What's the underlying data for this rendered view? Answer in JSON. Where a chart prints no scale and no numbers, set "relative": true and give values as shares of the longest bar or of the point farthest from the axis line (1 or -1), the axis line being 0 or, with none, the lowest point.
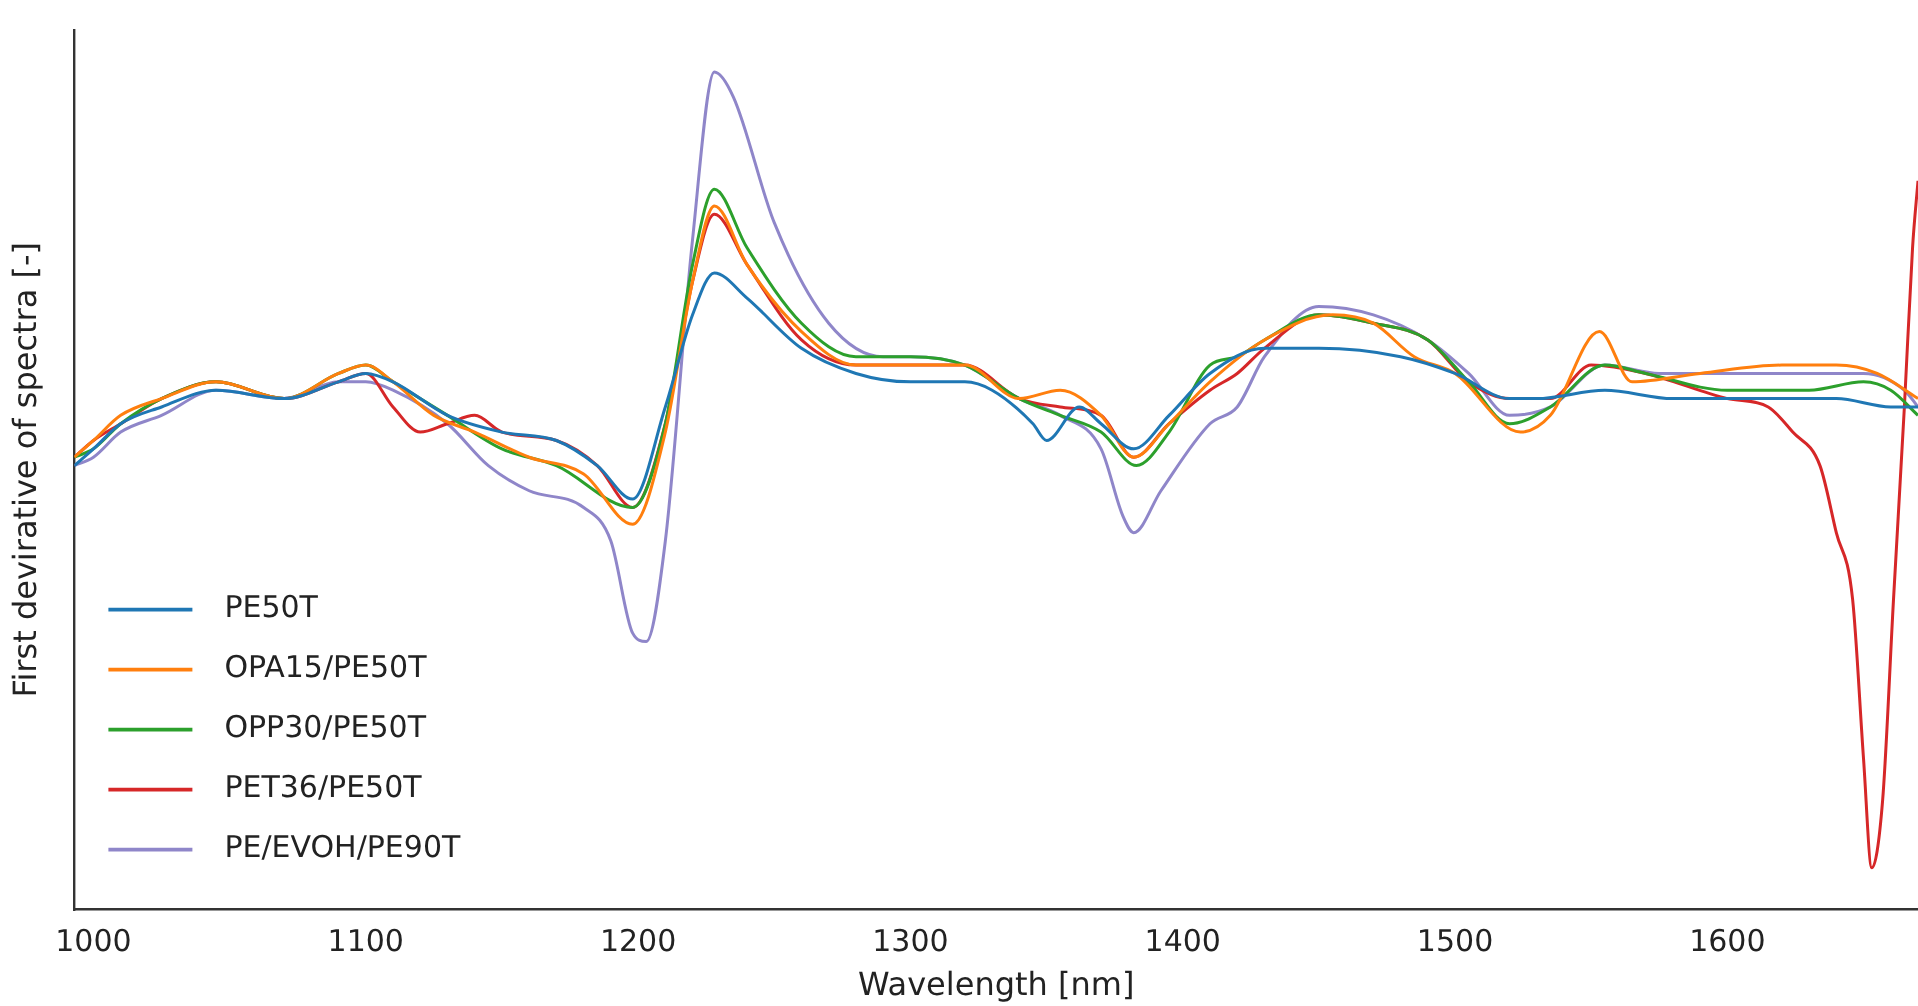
{
  "chart_data": {
    "type": "line",
    "xlabel": "Wavelength [nm]",
    "ylabel": "First devirative of spectra [-]",
    "relative": true,
    "xlim": [
      993,
      1670
    ],
    "xticks": [
      1000,
      1100,
      1200,
      1300,
      1400,
      1500,
      1600
    ],
    "tick_labels": "x",
    "legend": "bottom left",
    "marker": "none",
    "grid": false,
    "series": [
      {
        "name": "PE50T",
        "color": "#1f77b4",
        "x": [
          993,
          1000,
          1010,
          1025,
          1045,
          1070,
          1090,
          1100,
          1110,
          1130,
          1150,
          1170,
          1185,
          1198,
          1210,
          1220,
          1228,
          1240,
          1260,
          1280,
          1300,
          1320,
          1330,
          1345,
          1350,
          1362,
          1370,
          1382,
          1395,
          1410,
          1430,
          1450,
          1480,
          1500,
          1520,
          1530,
          1555,
          1580,
          1610,
          1640,
          1660,
          1670
        ],
        "values": [
          0.53,
          0.55,
          0.58,
          0.6,
          0.62,
          0.61,
          0.63,
          0.64,
          0.63,
          0.59,
          0.57,
          0.56,
          0.53,
          0.49,
          0.6,
          0.71,
          0.76,
          0.73,
          0.67,
          0.64,
          0.63,
          0.63,
          0.62,
          0.58,
          0.56,
          0.6,
          0.58,
          0.55,
          0.59,
          0.64,
          0.67,
          0.67,
          0.66,
          0.64,
          0.61,
          0.61,
          0.62,
          0.61,
          0.61,
          0.61,
          0.6,
          0.6
        ]
      },
      {
        "name": "OPA15/PE50T",
        "color": "#ff7f0e",
        "x": [
          993,
          1000,
          1010,
          1025,
          1045,
          1070,
          1090,
          1100,
          1110,
          1125,
          1140,
          1160,
          1180,
          1198,
          1210,
          1220,
          1228,
          1240,
          1260,
          1280,
          1300,
          1320,
          1340,
          1355,
          1370,
          1382,
          1395,
          1410,
          1430,
          1455,
          1470,
          1485,
          1500,
          1524,
          1535,
          1553,
          1565,
          1590,
          1620,
          1640,
          1655,
          1670
        ],
        "values": [
          0.54,
          0.56,
          0.59,
          0.61,
          0.63,
          0.61,
          0.64,
          0.65,
          0.63,
          0.59,
          0.57,
          0.54,
          0.52,
          0.46,
          0.57,
          0.75,
          0.84,
          0.77,
          0.69,
          0.65,
          0.65,
          0.65,
          0.61,
          0.62,
          0.59,
          0.54,
          0.58,
          0.63,
          0.68,
          0.71,
          0.7,
          0.66,
          0.64,
          0.57,
          0.59,
          0.69,
          0.63,
          0.64,
          0.65,
          0.65,
          0.64,
          0.61
        ]
      },
      {
        "name": "OPP30/PE50T",
        "color": "#2ca02c",
        "x": [
          993,
          1000,
          1010,
          1025,
          1045,
          1070,
          1090,
          1100,
          1110,
          1130,
          1150,
          1170,
          1198,
          1210,
          1220,
          1228,
          1240,
          1260,
          1280,
          1300,
          1320,
          1340,
          1355,
          1370,
          1383,
          1395,
          1410,
          1420,
          1430,
          1450,
          1470,
          1490,
          1505,
          1520,
          1535,
          1555,
          1570,
          1600,
          1630,
          1650,
          1660,
          1670
        ],
        "values": [
          0.54,
          0.55,
          0.58,
          0.61,
          0.63,
          0.61,
          0.64,
          0.65,
          0.63,
          0.59,
          0.55,
          0.53,
          0.48,
          0.58,
          0.77,
          0.86,
          0.79,
          0.7,
          0.66,
          0.66,
          0.65,
          0.61,
          0.59,
          0.57,
          0.53,
          0.57,
          0.65,
          0.66,
          0.68,
          0.71,
          0.7,
          0.68,
          0.63,
          0.58,
          0.6,
          0.65,
          0.64,
          0.62,
          0.62,
          0.63,
          0.62,
          0.59
        ]
      },
      {
        "name": "PET36/PE50T",
        "color": "#d62728",
        "x": [
          993,
          1000,
          1010,
          1025,
          1045,
          1070,
          1090,
          1100,
          1110,
          1120,
          1130,
          1140,
          1150,
          1170,
          1185,
          1198,
          1210,
          1220,
          1228,
          1240,
          1260,
          1280,
          1300,
          1320,
          1340,
          1355,
          1370,
          1382,
          1395,
          1410,
          1420,
          1430,
          1450,
          1470,
          1490,
          1505,
          1520,
          1535,
          1550,
          1570,
          1600,
          1615,
          1624,
          1634,
          1640,
          1646,
          1650,
          1653,
          1657,
          1661,
          1665,
          1668,
          1670
        ],
        "values": [
          0.54,
          0.56,
          0.58,
          0.61,
          0.63,
          0.61,
          0.63,
          0.64,
          0.6,
          0.57,
          0.58,
          0.59,
          0.57,
          0.56,
          0.53,
          0.48,
          0.58,
          0.75,
          0.83,
          0.77,
          0.68,
          0.65,
          0.65,
          0.65,
          0.61,
          0.6,
          0.59,
          0.54,
          0.58,
          0.62,
          0.64,
          0.67,
          0.71,
          0.7,
          0.68,
          0.63,
          0.61,
          0.61,
          0.65,
          0.64,
          0.61,
          0.6,
          0.57,
          0.53,
          0.45,
          0.37,
          0.18,
          0.05,
          0.13,
          0.37,
          0.6,
          0.79,
          0.87
        ]
      },
      {
        "name": "PE/EVOH/PE90T",
        "color": "#8f86c9",
        "x": [
          993,
          1000,
          1010,
          1025,
          1045,
          1070,
          1090,
          1100,
          1110,
          1130,
          1145,
          1160,
          1180,
          1190,
          1198,
          1203,
          1210,
          1220,
          1228,
          1235,
          1250,
          1270,
          1290,
          1300,
          1320,
          1340,
          1355,
          1370,
          1378,
          1382,
          1392,
          1410,
          1420,
          1430,
          1450,
          1470,
          1490,
          1505,
          1520,
          1535,
          1555,
          1575,
          1600,
          1630,
          1650,
          1665,
          1670
        ],
        "values": [
          0.53,
          0.54,
          0.57,
          0.59,
          0.62,
          0.61,
          0.63,
          0.63,
          0.62,
          0.58,
          0.53,
          0.5,
          0.48,
          0.44,
          0.33,
          0.32,
          0.44,
          0.8,
          1,
          0.97,
          0.82,
          0.7,
          0.66,
          0.66,
          0.65,
          0.61,
          0.59,
          0.55,
          0.47,
          0.45,
          0.5,
          0.58,
          0.6,
          0.66,
          0.72,
          0.71,
          0.68,
          0.64,
          0.59,
          0.6,
          0.65,
          0.64,
          0.64,
          0.64,
          0.64,
          0.62,
          0.6
        ]
      }
    ]
  }
}
